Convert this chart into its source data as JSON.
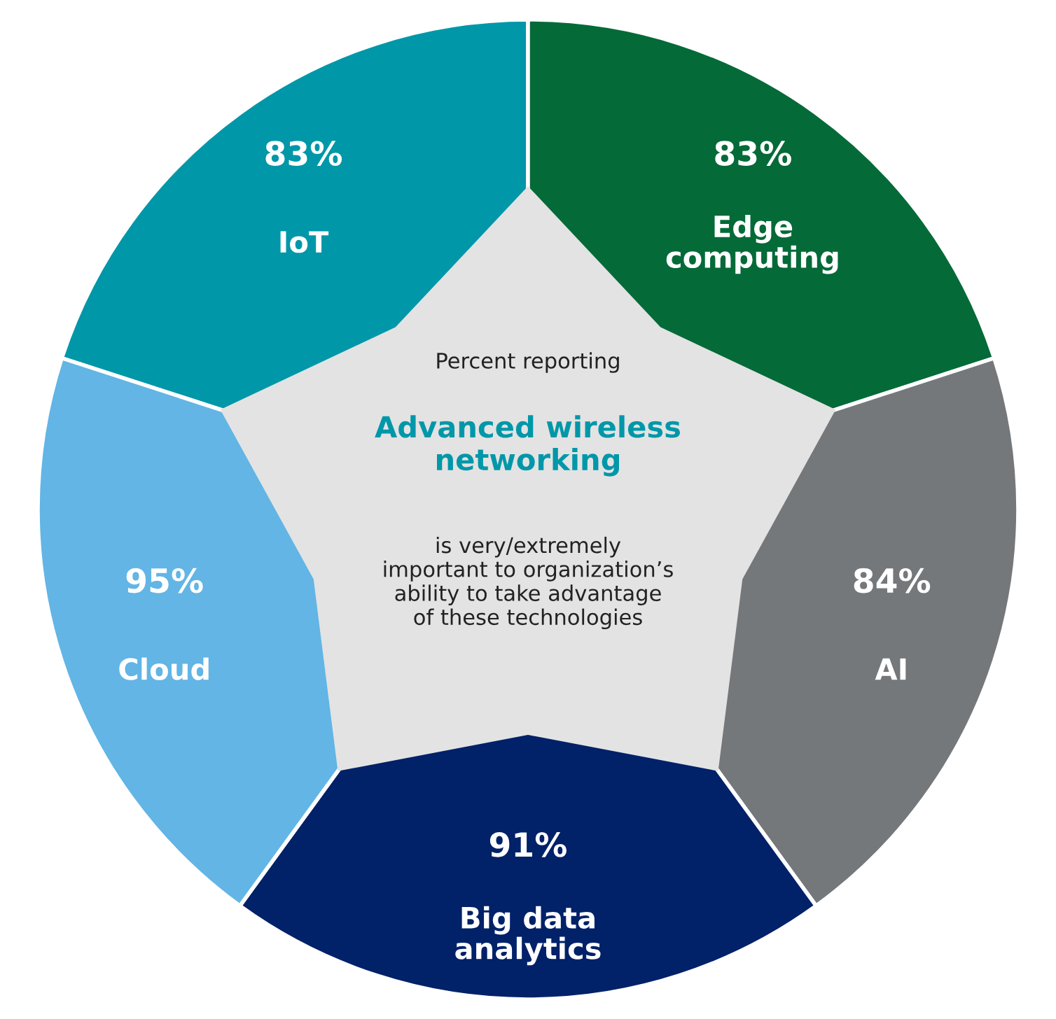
{
  "chart_data": {
    "type": "other",
    "categories": [
      "IoT",
      "Edge\ncomputing",
      "AI",
      "Big data\nanalytics",
      "Cloud"
    ],
    "values": [
      83,
      83,
      84,
      91,
      95
    ],
    "value_labels": [
      "83%",
      "83%",
      "84%",
      "91%",
      "95%"
    ],
    "colors": [
      "#0097a9",
      "#046a38",
      "#75787b",
      "#012169",
      "#62b5e5"
    ],
    "annotations": [
      "Percent reporting",
      "Advanced wireless\nnetworking",
      "is very/extremely\nimportant to organization’s\nability to take advantage\nof these technologies"
    ]
  }
}
